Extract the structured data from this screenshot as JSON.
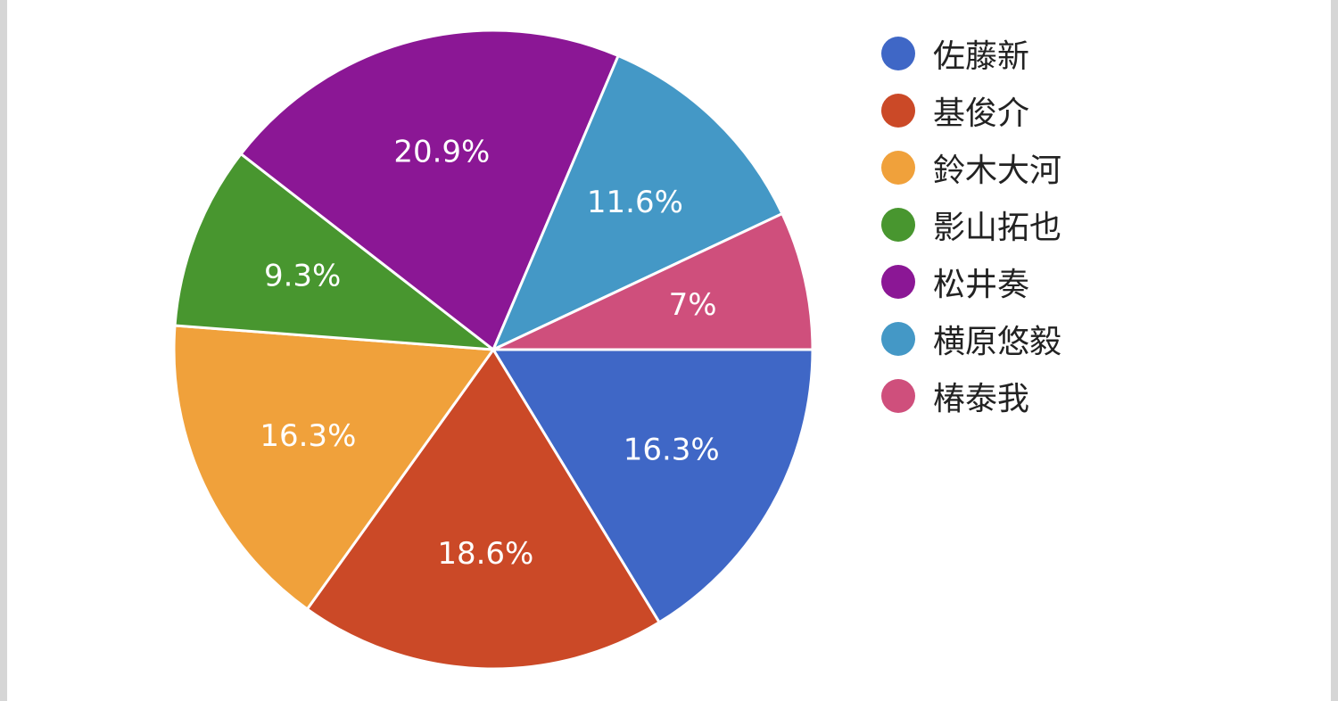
{
  "chart_data": {
    "type": "pie",
    "title": "",
    "start_angle_deg": 0,
    "direction": "clockwise",
    "legend_position": "right",
    "slices": [
      {
        "name": "佐藤新",
        "value": 16.3,
        "label": "16.3%",
        "color": "#3f67c6"
      },
      {
        "name": "基俊介",
        "value": 18.6,
        "label": "18.6%",
        "color": "#cb4927"
      },
      {
        "name": "鈴木大河",
        "value": 16.3,
        "label": "16.3%",
        "color": "#f0a13b"
      },
      {
        "name": "影山拓也",
        "value": 9.3,
        "label": "9.3%",
        "color": "#48962f"
      },
      {
        "name": "松井奏",
        "value": 20.9,
        "label": "20.9%",
        "color": "#8b1795"
      },
      {
        "name": "横原悠毅",
        "value": 11.6,
        "label": "11.6%",
        "color": "#4498c6"
      },
      {
        "name": "椿泰我",
        "value": 7,
        "label": "7%",
        "color": "#cf4f7c"
      }
    ]
  }
}
